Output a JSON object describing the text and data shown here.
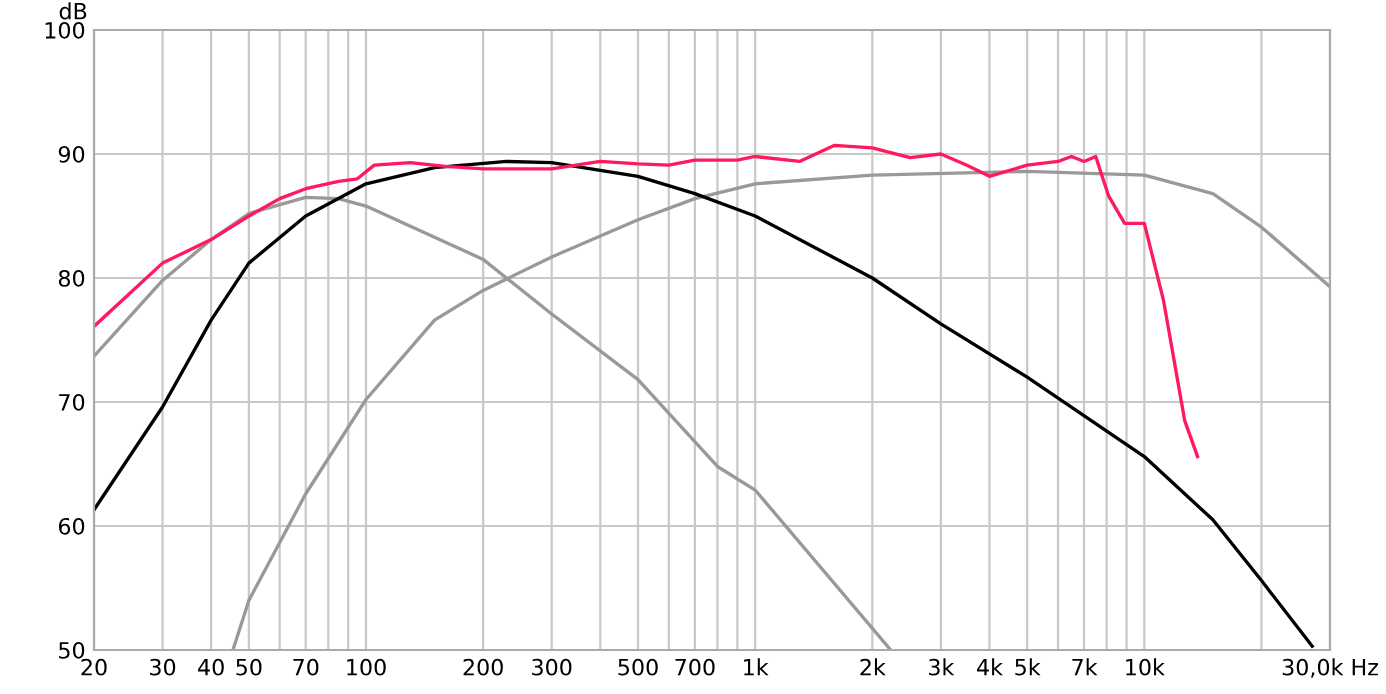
{
  "chart_data": {
    "type": "line",
    "ylabel": "dB",
    "log": "x",
    "grid": true,
    "marker": "none",
    "line_style": "solid",
    "xlim": [
      20,
      30000
    ],
    "ylim": [
      50,
      100
    ],
    "yticks": [
      50,
      60,
      70,
      80,
      90,
      100
    ],
    "xticks": [
      20,
      30,
      40,
      50,
      {
        "value": 60,
        "label": null
      },
      70,
      {
        "value": 80,
        "label": null
      },
      {
        "value": 90,
        "label": null
      },
      100,
      200,
      300,
      {
        "value": 400,
        "label": null
      },
      500,
      {
        "value": 600,
        "label": null
      },
      700,
      {
        "value": 800,
        "label": null
      },
      {
        "value": 900,
        "label": null
      },
      {
        "value": 1000,
        "label": "1k"
      },
      {
        "value": 2000,
        "label": "2k"
      },
      {
        "value": 3000,
        "label": "3k"
      },
      {
        "value": 4000,
        "label": "4k"
      },
      {
        "value": 5000,
        "label": "5k"
      },
      {
        "value": 6000,
        "label": null
      },
      {
        "value": 7000,
        "label": "7k"
      },
      {
        "value": 8000,
        "label": null
      },
      {
        "value": 9000,
        "label": null
      },
      {
        "value": 10000,
        "label": "10k"
      },
      {
        "value": 20000,
        "label": null
      },
      {
        "value": 30000,
        "label": "30,0k Hz"
      }
    ],
    "series": [
      {
        "color": "#999999",
        "x": [
          20,
          30,
          40,
          50,
          70,
          85,
          100,
          200,
          300,
          500,
          800,
          1000,
          2230
        ],
        "values": [
          73.7,
          79.8,
          83.1,
          85.2,
          86.5,
          86.4,
          85.8,
          81.5,
          77.1,
          71.8,
          64.8,
          62.9,
          50
        ]
      },
      {
        "color": "#999999",
        "x": [
          45.5,
          50,
          70,
          100,
          150,
          200,
          300,
          500,
          700,
          1000,
          2000,
          5000,
          10000,
          15000,
          20000,
          30000
        ],
        "values": [
          50,
          54.0,
          62.6,
          70.2,
          76.6,
          79.0,
          81.7,
          84.7,
          86.4,
          87.6,
          88.3,
          88.6,
          88.3,
          86.8,
          84.1,
          79.3
        ]
      },
      {
        "color": "#000000",
        "x": [
          20,
          30,
          40,
          50,
          70,
          100,
          150,
          230,
          300,
          500,
          700,
          1000,
          2000,
          3000,
          5000,
          10000,
          15000,
          20000,
          27000
        ],
        "values": [
          61.3,
          69.6,
          76.6,
          81.2,
          85.0,
          87.6,
          88.9,
          89.4,
          89.3,
          88.2,
          86.8,
          85.0,
          80.0,
          76.3,
          72.0,
          65.6,
          60.5,
          55.6,
          50.3
        ]
      },
      {
        "color": "#ff1a5e",
        "x": [
          20,
          30,
          40,
          50,
          60,
          70,
          85,
          95,
          105,
          130,
          160,
          200,
          300,
          400,
          500,
          600,
          700,
          900,
          1000,
          1300,
          1600,
          2000,
          2500,
          3000,
          3500,
          4000,
          5000,
          6000,
          6500,
          7000,
          7500,
          8100,
          8900,
          10000,
          11200,
          12700,
          13700
        ],
        "values": [
          76.1,
          81.2,
          83.1,
          85.0,
          86.4,
          87.2,
          87.8,
          88.0,
          89.1,
          89.3,
          89.0,
          88.8,
          88.8,
          89.4,
          89.2,
          89.1,
          89.5,
          89.5,
          89.8,
          89.4,
          90.7,
          90.5,
          89.7,
          90.0,
          89.1,
          88.2,
          89.1,
          89.4,
          89.8,
          89.4,
          89.8,
          86.6,
          84.4,
          84.4,
          78.2,
          68.5,
          65.6
        ]
      }
    ]
  }
}
